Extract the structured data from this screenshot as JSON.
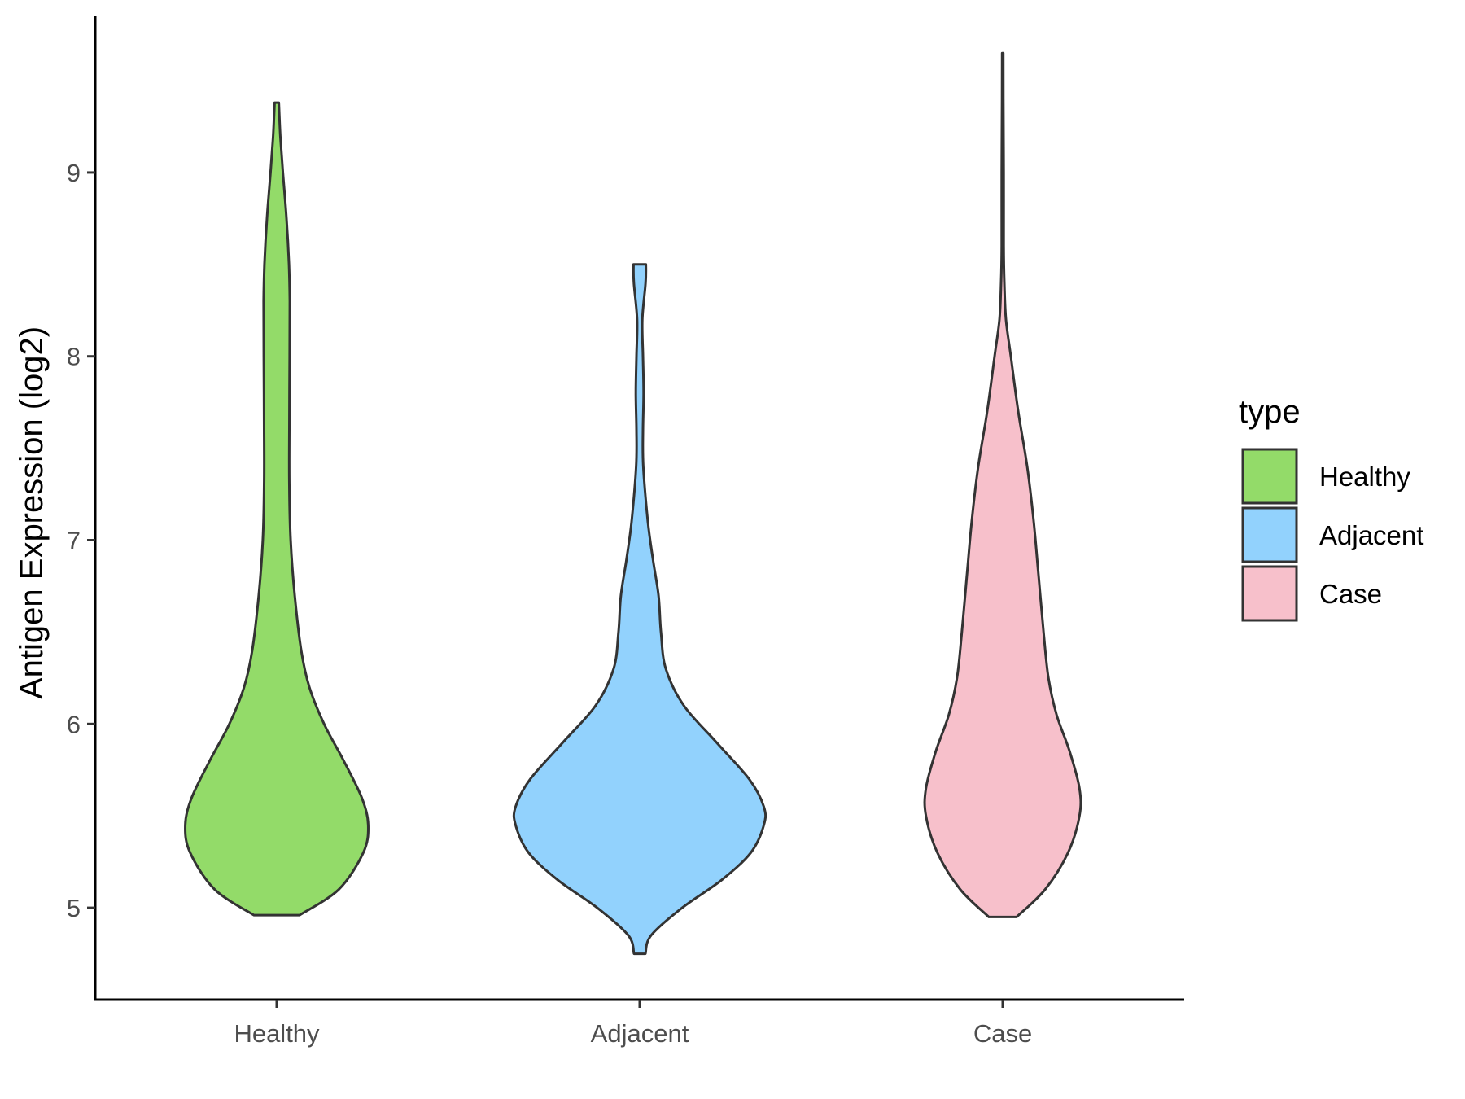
{
  "chart_data": {
    "type": "violin",
    "xlabel": "",
    "ylabel": "Antigen Expression (log2)",
    "ylim": [
      4.5,
      9.85
    ],
    "yticks": [
      5,
      6,
      7,
      8,
      9
    ],
    "categories": [
      "Healthy",
      "Adjacent",
      "Case"
    ],
    "legend": {
      "title": "type",
      "position": "right",
      "entries": [
        "Healthy",
        "Adjacent",
        "Case"
      ]
    },
    "grid": false,
    "series": [
      {
        "name": "Healthy",
        "color": "#93DB69",
        "min": 4.96,
        "max": 9.38,
        "profile": [
          [
            4.96,
            0.14
          ],
          [
            5.1,
            0.38
          ],
          [
            5.3,
            0.53
          ],
          [
            5.45,
            0.56
          ],
          [
            5.6,
            0.52
          ],
          [
            5.8,
            0.41
          ],
          [
            6.0,
            0.29
          ],
          [
            6.2,
            0.2
          ],
          [
            6.4,
            0.15
          ],
          [
            6.7,
            0.11
          ],
          [
            7.0,
            0.085
          ],
          [
            7.3,
            0.077
          ],
          [
            7.6,
            0.077
          ],
          [
            8.0,
            0.079
          ],
          [
            8.3,
            0.08
          ],
          [
            8.5,
            0.075
          ],
          [
            8.75,
            0.06
          ],
          [
            9.0,
            0.038
          ],
          [
            9.2,
            0.022
          ],
          [
            9.38,
            0.013
          ]
        ]
      },
      {
        "name": "Adjacent",
        "color": "#92D2FD",
        "min": 4.75,
        "max": 8.5,
        "profile": [
          [
            4.75,
            0.035
          ],
          [
            4.85,
            0.07
          ],
          [
            5.0,
            0.26
          ],
          [
            5.15,
            0.5
          ],
          [
            5.3,
            0.68
          ],
          [
            5.45,
            0.76
          ],
          [
            5.55,
            0.76
          ],
          [
            5.7,
            0.67
          ],
          [
            5.9,
            0.47
          ],
          [
            6.1,
            0.27
          ],
          [
            6.3,
            0.16
          ],
          [
            6.5,
            0.13
          ],
          [
            6.7,
            0.115
          ],
          [
            6.9,
            0.08
          ],
          [
            7.1,
            0.05
          ],
          [
            7.4,
            0.022
          ],
          [
            7.6,
            0.02
          ],
          [
            7.8,
            0.024
          ],
          [
            8.0,
            0.02
          ],
          [
            8.2,
            0.016
          ],
          [
            8.4,
            0.036
          ],
          [
            8.5,
            0.038
          ]
        ]
      },
      {
        "name": "Case",
        "color": "#F7C0CB",
        "min": 4.95,
        "max": 9.65,
        "profile": [
          [
            4.95,
            0.085
          ],
          [
            5.1,
            0.26
          ],
          [
            5.3,
            0.4
          ],
          [
            5.5,
            0.47
          ],
          [
            5.65,
            0.47
          ],
          [
            5.85,
            0.41
          ],
          [
            6.05,
            0.33
          ],
          [
            6.25,
            0.28
          ],
          [
            6.5,
            0.25
          ],
          [
            6.8,
            0.22
          ],
          [
            7.1,
            0.19
          ],
          [
            7.4,
            0.15
          ],
          [
            7.7,
            0.095
          ],
          [
            8.0,
            0.05
          ],
          [
            8.2,
            0.02
          ],
          [
            8.4,
            0.01
          ],
          [
            8.6,
            0.006
          ],
          [
            9.0,
            0.006
          ],
          [
            9.4,
            0.004
          ],
          [
            9.65,
            0.0035
          ]
        ]
      }
    ]
  }
}
